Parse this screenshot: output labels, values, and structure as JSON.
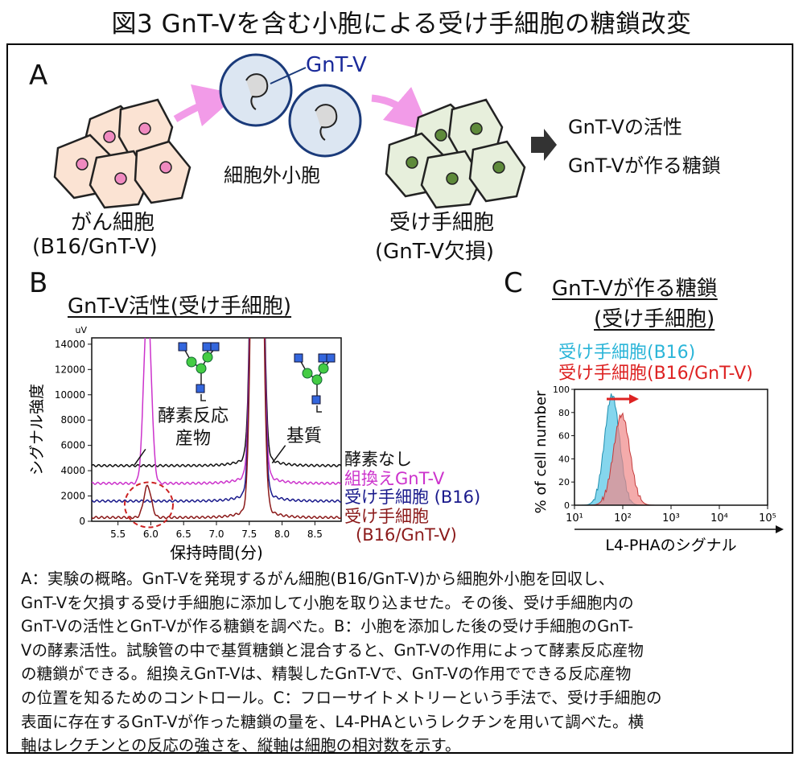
{
  "title": "図3 GnT-Vを含む小胞による受け手細胞の糖鎖改変",
  "panel_a": {
    "label": "A",
    "donor_cell": [
      "がん細胞",
      "(B16/GnT-V)"
    ],
    "vesicle": "細胞外小胞",
    "gntv": "GnT-V",
    "recipient_cell": [
      "受け手細胞",
      "(GnT-V欠損)"
    ],
    "results": [
      "GnT-Vの活性",
      "GnT-Vが作る糖鎖"
    ],
    "colors": {
      "donor_fill": "#fbe3d3",
      "donor_nucleus": "#f08ac0",
      "vesicle_fill": "#dce6f2",
      "recipient_fill": "#e7efdc",
      "recipient_nucleus": "#5e8a3a",
      "arrow": "#f29be8"
    }
  },
  "panel_b": {
    "label": "B",
    "title": "GnT-V活性(受け手細胞)",
    "annot_product": [
      "酵素反応",
      "産物"
    ],
    "annot_substrate": "基質",
    "chart_data": {
      "type": "line",
      "title": "",
      "xlabel": "保持時間(分)",
      "ylabel": "シグナル強度",
      "yunit": "uV",
      "xlim": [
        5.1,
        8.9
      ],
      "ylim": [
        0,
        14500
      ],
      "xticks": [
        "5.5",
        "6.0",
        "6.5",
        "7.0",
        "7.5",
        "8.0",
        "8.5"
      ],
      "yticks": [
        "0",
        "2000",
        "4000",
        "6000",
        "8000",
        "10000",
        "12000",
        "14000"
      ],
      "series": [
        {
          "name": "酵素なし",
          "color": "#111111",
          "baseline": 4400,
          "product_peak": 0
        },
        {
          "name": "組換えGnT-V",
          "color": "#cc33cc",
          "baseline": 3000,
          "product_peak": 14500
        },
        {
          "name": "受け手細胞 (B16)",
          "color": "#1a1a8c",
          "baseline": 1600,
          "product_peak": 0
        },
        {
          "name": "受け手細胞",
          "name2": "(B16/GnT-V)",
          "color": "#8b1a1a",
          "baseline": 300,
          "product_peak": 2500
        }
      ]
    }
  },
  "panel_c": {
    "label": "C",
    "title": [
      "GnT-Vが作る糖鎖",
      "(受け手細胞)"
    ],
    "legend": [
      {
        "name": "受け手細胞(B16)",
        "color": "#2bb5d8"
      },
      {
        "name": "受け手細胞(B16/GnT-V)",
        "color": "#dd2222"
      }
    ],
    "chart_data": {
      "type": "area",
      "xlabel": "L4-PHAのシグナル",
      "ylabel": "% of cell number",
      "xscale": "log",
      "xlim": [
        10,
        100000
      ],
      "ylim": [
        0,
        100
      ],
      "yticks": [
        "0",
        "20",
        "40",
        "60",
        "80",
        "100"
      ],
      "xticks": [
        "10¹",
        "10²",
        "10³",
        "10⁴",
        "10⁵"
      ],
      "series": [
        {
          "name": "受け手細胞(B16)",
          "peak_x": 60,
          "peak_y": 95,
          "color": "#66cce8"
        },
        {
          "name": "受け手細胞(B16/GnT-V)",
          "peak_x": 95,
          "peak_y": 78,
          "color": "#f08888"
        }
      ]
    }
  },
  "caption": [
    "A：実験の概略。GnT-Vを発現するがん細胞(B16/GnT-V)から細胞外小胞を回収し、",
    "GnT-Vを欠損する受け手細胞に添加して小胞を取り込ませた。その後、受け手細胞内の",
    "GnT-Vの活性とGnT-Vが作る糖鎖を調べた。B：小胞を添加した後の受け手細胞のGnT-",
    "Vの酵素活性。試験管の中で基質糖鎖と混合すると、GnT-Vの作用によって酵素反応産物",
    "の糖鎖ができる。組換えGnT-Vは、精製したGnT-Vで、GnT-Vの作用でできる反応産物",
    "の位置を知るためのコントロール。C：フローサイトメトリーという手法で、受け手細胞の",
    "表面に存在するGnT-Vが作った糖鎖の量を、L4-PHAというレクチンを用いて調べた。横",
    "軸はレクチンとの反応の強さを、縦軸は細胞の相対数を示す。"
  ]
}
